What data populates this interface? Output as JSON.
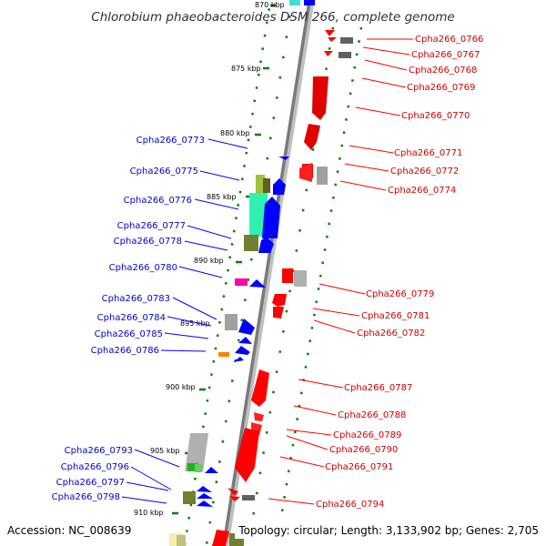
{
  "title": "Chlorobium phaeobacteroides DSM 266, complete genome",
  "footer": {
    "accession": "Accession: NC_008639",
    "summary": "Topology: circular; Length: 3,133,902 bp; Genes: 2,705"
  },
  "colors": {
    "minus_strand_gene": "#0000ff",
    "plus_strand_gene": "#ff0000",
    "minus_label": "#0000cc",
    "plus_label": "#cc0000",
    "backbone": "#808080",
    "ticks": "#008000"
  },
  "kbp_labels": [
    "870 kbp",
    "875 kbp",
    "880 kbp",
    "885 kbp",
    "890 kbp",
    "895 kbp",
    "900 kbp",
    "905 kbp",
    "910 kbp"
  ],
  "left_labels": [
    "Cpha266_0773",
    "Cpha266_0775",
    "Cpha266_0776",
    "Cpha266_0777",
    "Cpha266_0778",
    "Cpha266_0780",
    "Cpha266_0783",
    "Cpha266_0784",
    "Cpha266_0785",
    "Cpha266_0786",
    "Cpha266_0793",
    "Cpha266_0796",
    "Cpha266_0797",
    "Cpha266_0798"
  ],
  "right_labels": [
    "Cpha266_0766",
    "Cpha266_0767",
    "Cpha266_0768",
    "Cpha266_0769",
    "Cpha266_0770",
    "Cpha266_0771",
    "Cpha266_0772",
    "Cpha266_0774",
    "Cpha266_0779",
    "Cpha266_0781",
    "Cpha266_0782",
    "Cpha266_0787",
    "Cpha266_0788",
    "Cpha266_0789",
    "Cpha266_0790",
    "Cpha266_0791",
    "Cpha266_0794"
  ]
}
